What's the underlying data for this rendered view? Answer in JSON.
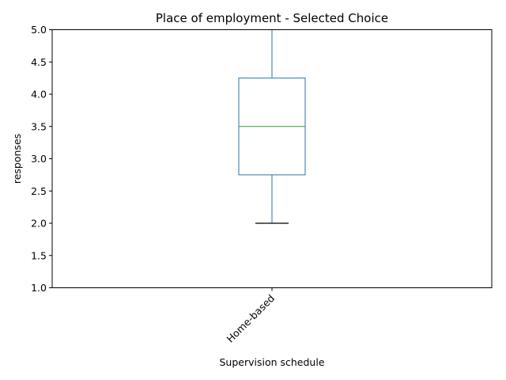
{
  "chart_data": {
    "type": "box",
    "title": "Place of employment - Selected Choice",
    "xlabel": "Supervision schedule",
    "ylabel": "responses",
    "categories": [
      "Home-based"
    ],
    "boxes": [
      {
        "category": "Home-based",
        "whisker_low": 2.0,
        "q1": 2.75,
        "median": 3.5,
        "q3": 4.25,
        "whisker_high": 5.0
      }
    ],
    "ylim": [
      1.0,
      5.0
    ],
    "yticks": [
      "1.0",
      "1.5",
      "2.0",
      "2.5",
      "3.0",
      "3.5",
      "4.0",
      "4.5",
      "5.0"
    ],
    "grid": false,
    "colors": {
      "box": "#1f77b4",
      "median": "#2ca02c",
      "low_cap": "#000000",
      "axes": "#000000"
    }
  }
}
